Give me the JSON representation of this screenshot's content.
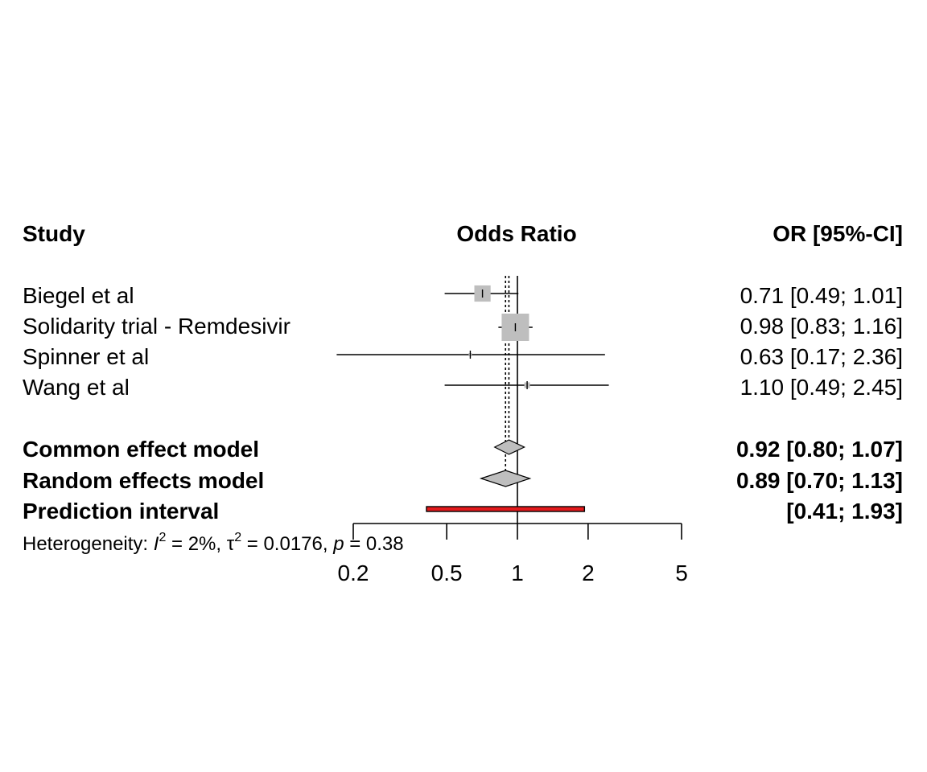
{
  "chart_data": {
    "type": "forest",
    "scale": "log",
    "headers": {
      "study": "Study",
      "effect": "Odds Ratio",
      "ci": "OR [95%-CI]"
    },
    "xaxis": {
      "ticks": [
        0.2,
        0.5,
        1,
        2,
        5
      ],
      "tick_labels": [
        "0.2",
        "0.5",
        "1",
        "2",
        "5"
      ],
      "range": [
        0.2,
        5
      ],
      "null_line": 1
    },
    "studies": [
      {
        "name": "Biegel et al",
        "or": 0.71,
        "lower": 0.49,
        "upper": 1.01,
        "weight": 0.25,
        "ci_text": "0.71 [0.49; 1.01]"
      },
      {
        "name": "Solidarity trial - Remdesivir",
        "or": 0.98,
        "lower": 0.83,
        "upper": 1.16,
        "weight": 0.71,
        "ci_text": "0.98 [0.83; 1.16]"
      },
      {
        "name": "Spinner et al",
        "or": 0.63,
        "lower": 0.17,
        "upper": 2.36,
        "weight": 0.01,
        "ci_text": "0.63 [0.17; 2.36]"
      },
      {
        "name": "Wang et al",
        "or": 1.1,
        "lower": 0.49,
        "upper": 2.45,
        "weight": 0.03,
        "ci_text": "1.10 [0.49; 2.45]"
      }
    ],
    "common": {
      "label": "Common effect model",
      "or": 0.92,
      "lower": 0.8,
      "upper": 1.07,
      "ci_text": "0.92 [0.80; 1.07]"
    },
    "random": {
      "label": "Random effects model",
      "or": 0.89,
      "lower": 0.7,
      "upper": 1.13,
      "ci_text": "0.89 [0.70; 1.13]"
    },
    "prediction": {
      "label": "Prediction interval",
      "lower": 0.41,
      "upper": 1.93,
      "ci_text": "[0.41; 1.93]"
    },
    "heterogeneity": {
      "prefix": "Heterogeneity: ",
      "i2_symbol": "I",
      "i2_value": " = 2%, ",
      "tau2_symbol": "τ",
      "tau2_value": " = 0.0176, ",
      "p_symbol": "p",
      "p_value": " = 0.38"
    },
    "colors": {
      "square": "#bebebe",
      "diamond": "#bebebe",
      "prediction": "#e31a1c"
    }
  }
}
